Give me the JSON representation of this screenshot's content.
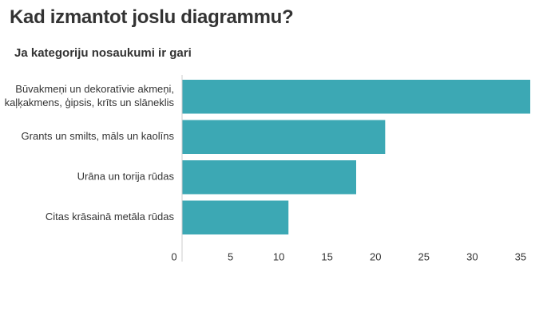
{
  "header": {
    "title": "Kad izmantot joslu diagrammu?",
    "subtitle": "Ja kategoriju nosaukumi ir gari"
  },
  "colors": {
    "bar": "#3ca8b4",
    "axis": "#cccccc",
    "text": "#333333"
  },
  "chart_data": {
    "type": "bar",
    "orientation": "horizontal",
    "categories": [
      [
        "Būvakmeņi un dekoratīvie akmeņi,",
        "kaļķakmens, ģipsis, krīts un slāneklis"
      ],
      [
        "Grants un smilts, māls un kaolīns"
      ],
      [
        "Urāna un torija rūdas"
      ],
      [
        "Citas krāsainā metāla rūdas"
      ]
    ],
    "values": [
      36,
      21,
      18,
      11
    ],
    "xticks": [
      "0",
      "5",
      "10",
      "15",
      "20",
      "25",
      "30",
      "35"
    ],
    "xlim": [
      0,
      36
    ],
    "grid": false,
    "legend": "none"
  }
}
